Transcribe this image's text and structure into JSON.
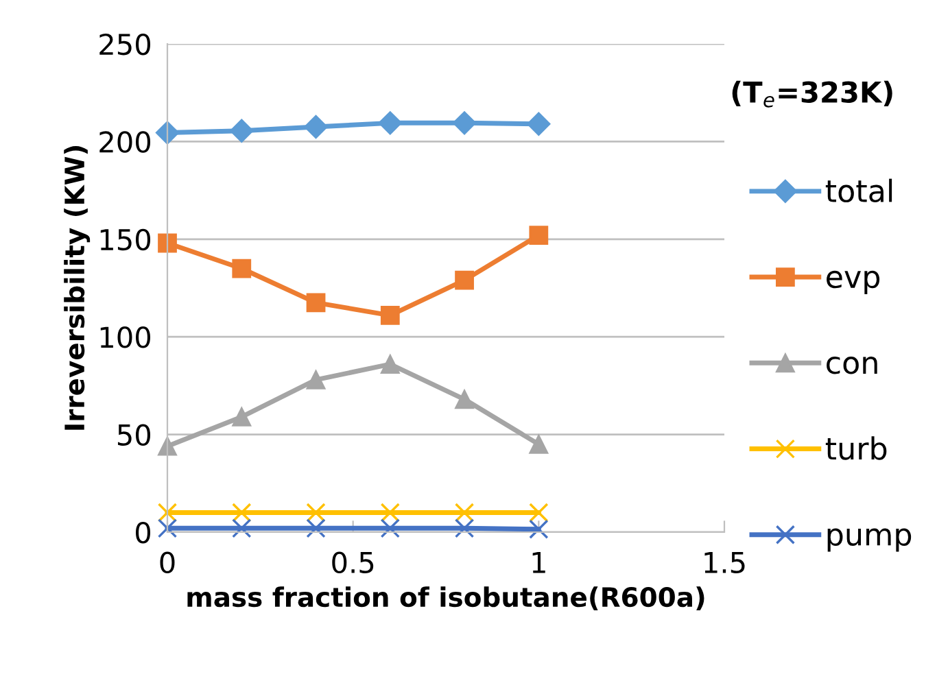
{
  "chart_data": {
    "type": "line",
    "annotations": [
      "(T$_{e}$=323K)"
    ],
    "xlabel": "mass fraction of isobutane(R600a)",
    "ylabel": "Irreversibility (KW)",
    "x": [
      0,
      0.2,
      0.4,
      0.6,
      0.8,
      1
    ],
    "series": [
      {
        "name": "total",
        "color": "#5b9bd5",
        "marker": "diamond",
        "values": [
          204.5,
          205.5,
          207.5,
          209.5,
          209.5,
          209
        ]
      },
      {
        "name": "evp",
        "color": "#ed7d31",
        "marker": "square",
        "values": [
          148,
          135,
          117.5,
          111,
          129,
          152
        ]
      },
      {
        "name": "con",
        "color": "#a5a5a5",
        "marker": "triangle",
        "values": [
          44,
          59,
          78,
          86,
          68,
          45
        ]
      },
      {
        "name": "turb",
        "color": "#ffc000",
        "marker": "cross",
        "values": [
          10,
          10,
          10,
          10,
          10,
          10
        ]
      },
      {
        "name": "pump",
        "color": "#4472c4",
        "marker": "cross",
        "values": [
          2,
          2,
          2,
          2,
          2,
          1.5
        ]
      }
    ],
    "xlim": [
      0,
      1.5
    ],
    "xticks": [
      0,
      0.5,
      1,
      1.5
    ],
    "ylim": [
      0,
      250
    ],
    "yticks": [
      0,
      50,
      100,
      150,
      200,
      250
    ],
    "grid": "y",
    "legend": "right"
  }
}
